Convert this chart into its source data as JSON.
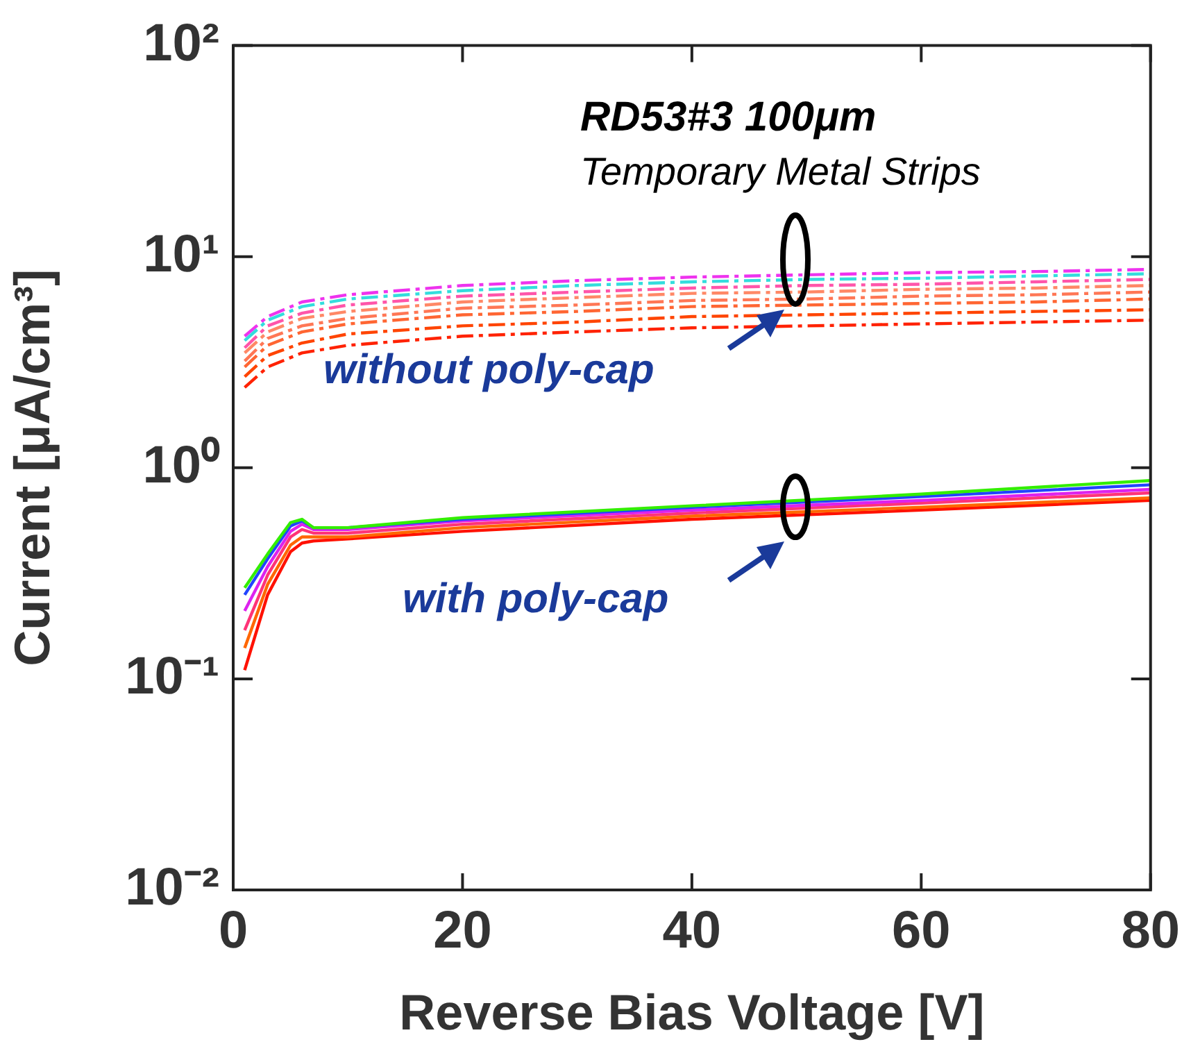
{
  "chart_data": {
    "type": "line",
    "xlabel": "Reverse Bias Voltage [V]",
    "ylabel": "Current [μA/cm³]",
    "log": "y",
    "grid": false,
    "legend": false,
    "marker": "none",
    "xlim": [
      0,
      80
    ],
    "xticks": [
      0,
      20,
      40,
      60,
      80
    ],
    "ylim": [
      0.01,
      100
    ],
    "yticks": [
      {
        "value": 0.01,
        "label": "10⁻²"
      },
      {
        "value": 0.1,
        "label": "10⁻¹"
      },
      {
        "value": 1,
        "label": "10⁰"
      },
      {
        "value": 10,
        "label": "10¹"
      },
      {
        "value": 100,
        "label": "10²"
      }
    ],
    "annotations": [
      "RD53#3 100μm",
      "Temporary Metal Strips",
      "without poly-cap",
      "with poly-cap"
    ],
    "series": [
      {
        "color": "#ff2200",
        "line_style": "dashed",
        "x": [
          1,
          3,
          6,
          10,
          20,
          30,
          40,
          50,
          60,
          70,
          80
        ],
        "values": [
          2.4,
          3.0,
          3.5,
          3.8,
          4.2,
          4.4,
          4.6,
          4.7,
          4.8,
          4.9,
          5.0
        ]
      },
      {
        "color": "#ff4400",
        "line_style": "dashed",
        "x": [
          1,
          3,
          6,
          10,
          20,
          30,
          40,
          50,
          60,
          70,
          80
        ],
        "values": [
          2.7,
          3.4,
          3.9,
          4.3,
          4.7,
          4.9,
          5.2,
          5.3,
          5.4,
          5.5,
          5.6
        ]
      },
      {
        "color": "#ff6633",
        "line_style": "dashed",
        "x": [
          1,
          3,
          6,
          10,
          20,
          30,
          40,
          50,
          60,
          70,
          80
        ],
        "values": [
          3.0,
          3.8,
          4.4,
          4.8,
          5.3,
          5.5,
          5.8,
          5.9,
          6.0,
          6.1,
          6.3
        ]
      },
      {
        "color": "#ff7755",
        "line_style": "dashed",
        "x": [
          1,
          3,
          6,
          10,
          20,
          30,
          40,
          50,
          60,
          70,
          80
        ],
        "values": [
          3.2,
          4.1,
          4.7,
          5.1,
          5.7,
          5.9,
          6.2,
          6.3,
          6.5,
          6.6,
          6.8
        ]
      },
      {
        "color": "#ff8866",
        "line_style": "dashed",
        "x": [
          1,
          3,
          6,
          10,
          20,
          30,
          40,
          50,
          60,
          70,
          80
        ],
        "values": [
          3.5,
          4.4,
          5.1,
          5.5,
          6.1,
          6.4,
          6.7,
          6.8,
          7.0,
          7.1,
          7.3
        ]
      },
      {
        "color": "#ff55aa",
        "line_style": "dashed",
        "x": [
          1,
          3,
          6,
          10,
          20,
          30,
          40,
          50,
          60,
          70,
          80
        ],
        "values": [
          3.7,
          4.7,
          5.4,
          5.9,
          6.5,
          6.8,
          7.1,
          7.3,
          7.4,
          7.6,
          7.8
        ]
      },
      {
        "color": "#33dddd",
        "line_style": "dashed",
        "x": [
          1,
          3,
          6,
          10,
          20,
          30,
          40,
          50,
          60,
          70,
          80
        ],
        "values": [
          4.0,
          5.0,
          5.8,
          6.3,
          6.9,
          7.3,
          7.6,
          7.8,
          7.9,
          8.1,
          8.3
        ]
      },
      {
        "color": "#ee33ee",
        "line_style": "dashed",
        "x": [
          1,
          3,
          6,
          10,
          20,
          30,
          40,
          50,
          60,
          70,
          80
        ],
        "values": [
          4.2,
          5.2,
          6.1,
          6.6,
          7.3,
          7.7,
          8.0,
          8.2,
          8.4,
          8.5,
          8.7
        ]
      },
      {
        "color": "#33ee00",
        "line_style": "solid",
        "x": [
          1,
          3,
          5,
          6,
          7,
          10,
          20,
          40,
          60,
          80
        ],
        "values": [
          0.27,
          0.39,
          0.55,
          0.57,
          0.52,
          0.52,
          0.58,
          0.66,
          0.75,
          0.87
        ]
      },
      {
        "color": "#2244ff",
        "line_style": "solid",
        "x": [
          1,
          3,
          5,
          6,
          7,
          10,
          20,
          40,
          60,
          80
        ],
        "values": [
          0.25,
          0.37,
          0.53,
          0.56,
          0.52,
          0.52,
          0.57,
          0.65,
          0.73,
          0.83
        ]
      },
      {
        "color": "#dd22ee",
        "line_style": "solid",
        "x": [
          1,
          3,
          5,
          6,
          7,
          10,
          20,
          40,
          60,
          80
        ],
        "values": [
          0.21,
          0.34,
          0.5,
          0.54,
          0.51,
          0.51,
          0.56,
          0.63,
          0.7,
          0.79
        ]
      },
      {
        "color": "#ff3377",
        "line_style": "solid",
        "x": [
          1,
          3,
          5,
          6,
          7,
          10,
          20,
          40,
          60,
          80
        ],
        "values": [
          0.17,
          0.31,
          0.47,
          0.51,
          0.49,
          0.49,
          0.54,
          0.61,
          0.68,
          0.76
        ]
      },
      {
        "color": "#ff6600",
        "line_style": "solid",
        "x": [
          1,
          3,
          5,
          6,
          7,
          10,
          20,
          40,
          60,
          80
        ],
        "values": [
          0.14,
          0.28,
          0.43,
          0.47,
          0.47,
          0.47,
          0.52,
          0.59,
          0.65,
          0.72
        ]
      },
      {
        "color": "#ff1100",
        "line_style": "solid",
        "x": [
          1,
          3,
          5,
          6,
          7,
          10,
          20,
          40,
          60,
          80
        ],
        "values": [
          0.11,
          0.25,
          0.4,
          0.44,
          0.45,
          0.46,
          0.5,
          0.57,
          0.63,
          0.7
        ]
      }
    ]
  }
}
